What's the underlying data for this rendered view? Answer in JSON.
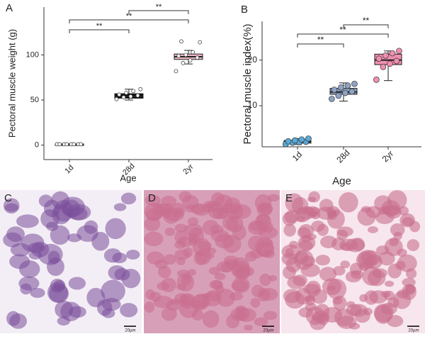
{
  "chart_data": [
    {
      "type": "box",
      "panel": "A",
      "ylabel": "Pectoral muscle weight (g)",
      "xlabel": "Age",
      "categories": [
        "1d",
        "28d",
        "2yr"
      ],
      "ylim": [
        -16,
        153
      ],
      "yticks": [
        0,
        50,
        100
      ],
      "boxes": [
        {
          "min": 0.5,
          "q1": 0.8,
          "median": 1,
          "q3": 1.2,
          "max": 1.5,
          "color": "#111111",
          "points": [
            1,
            1,
            1,
            1,
            1,
            1,
            1,
            1
          ]
        },
        {
          "min": 50,
          "q1": 52,
          "median": 54,
          "q3": 57,
          "max": 62,
          "color": "#111111",
          "points": [
            51,
            53,
            54,
            55,
            56,
            58,
            60,
            62
          ]
        },
        {
          "min": 90,
          "q1": 95,
          "median": 98,
          "q3": 101,
          "max": 105,
          "color": "#f2b8c6",
          "points": [
            82,
            91,
            94,
            97,
            99,
            100,
            103,
            114,
            115
          ]
        }
      ],
      "comparisons": [
        {
          "pair": [
            0,
            1
          ],
          "label": "**"
        },
        {
          "pair": [
            0,
            2
          ],
          "label": "**"
        },
        {
          "pair": [
            1,
            2
          ],
          "label": "**"
        }
      ]
    },
    {
      "type": "box",
      "panel": "B",
      "ylabel": "Pectoral muscle index(%)",
      "xlabel": "Age",
      "categories": [
        "1d",
        "28d",
        "2yr"
      ],
      "ylim": [
        1,
        28.5
      ],
      "yticks": [
        10,
        20
      ],
      "boxes": [
        {
          "min": 1.5,
          "q1": 1.8,
          "median": 2.1,
          "q3": 2.4,
          "max": 2.8,
          "color": "#5aa9d6",
          "points": [
            1.6,
            1.9,
            2.0,
            2.1,
            2.2,
            2.4,
            2.6,
            2.8
          ]
        },
        {
          "min": 11,
          "q1": 12.5,
          "median": 13,
          "q3": 13.8,
          "max": 15,
          "color": "#8fa3c2",
          "points": [
            11.5,
            12.2,
            12.8,
            13.1,
            13.5,
            14,
            14.4,
            14.8
          ]
        },
        {
          "min": 15.5,
          "q1": 19,
          "median": 20,
          "q3": 21.3,
          "max": 22,
          "color": "#f08fb0",
          "points": [
            15.7,
            18.5,
            19.2,
            19.8,
            20.3,
            21,
            21.5,
            22
          ]
        }
      ],
      "comparisons": [
        {
          "pair": [
            0,
            1
          ],
          "label": "**"
        },
        {
          "pair": [
            0,
            2
          ],
          "label": "**"
        },
        {
          "pair": [
            1,
            2
          ],
          "label": "**"
        }
      ]
    }
  ],
  "images": [
    {
      "label": "C",
      "scale_bar": "20µm"
    },
    {
      "label": "D",
      "scale_bar": "20µm"
    },
    {
      "label": "E",
      "scale_bar": "20µm"
    }
  ]
}
